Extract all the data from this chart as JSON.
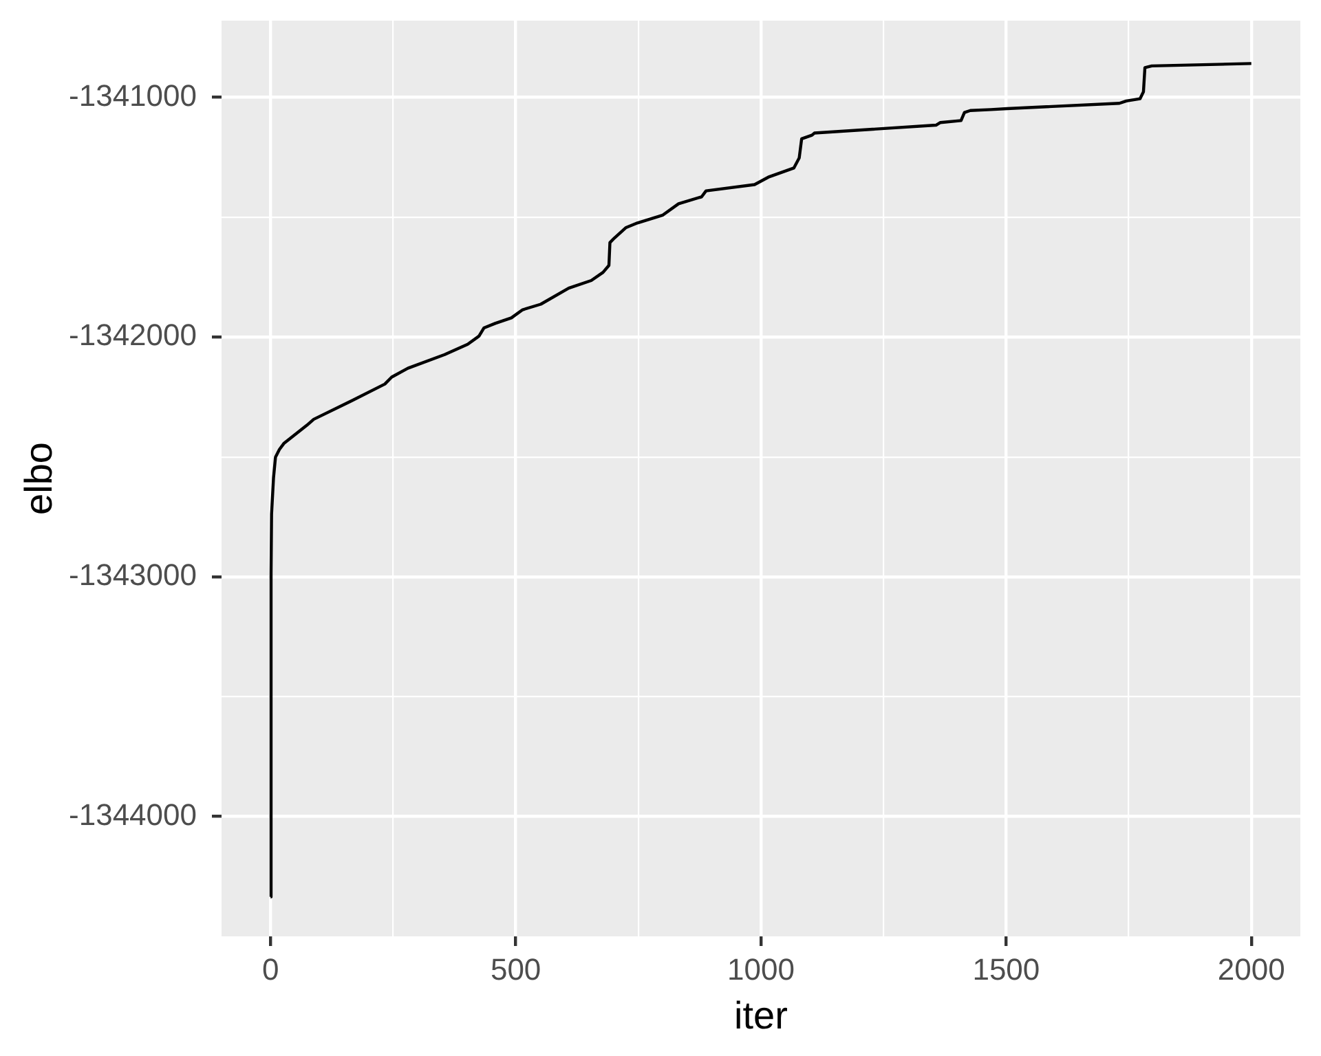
{
  "chart_data": {
    "type": "line",
    "xlabel": "iter",
    "ylabel": "elbo",
    "x": [
      0,
      1,
      2,
      6,
      10,
      18,
      27,
      74,
      88,
      168,
      233,
      247,
      280,
      355,
      402,
      425,
      435,
      458,
      491,
      514,
      551,
      608,
      654,
      678,
      690,
      692,
      701,
      725,
      748,
      800,
      832,
      879,
      888,
      987,
      1015,
      1067,
      1078,
      1083,
      1104,
      1109,
      1357,
      1366,
      1408,
      1415,
      1427,
      1469,
      1502,
      1731,
      1745,
      1773,
      1780,
      1783,
      1797,
      2000
    ],
    "series": [
      {
        "color": "#000000",
        "values": [
          -1344335,
          -1342987,
          -1342739,
          -1342587,
          -1342501,
          -1342469,
          -1342444,
          -1342368,
          -1342343,
          -1342263,
          -1342196,
          -1342167,
          -1342130,
          -1342073,
          -1342030,
          -1341996,
          -1341962,
          -1341943,
          -1341920,
          -1341886,
          -1341863,
          -1341796,
          -1341764,
          -1341730,
          -1341701,
          -1341606,
          -1341587,
          -1341543,
          -1341524,
          -1341491,
          -1341444,
          -1341415,
          -1341390,
          -1341364,
          -1341333,
          -1341295,
          -1341253,
          -1341173,
          -1341158,
          -1341149,
          -1341116,
          -1341105,
          -1341097,
          -1341063,
          -1341055,
          -1341051,
          -1341047,
          -1341025,
          -1341015,
          -1341006,
          -1340977,
          -1340876,
          -1340869,
          -1340859
        ]
      }
    ],
    "xlim": [
      -100,
      2100
    ],
    "ylim": [
      -1344500,
      -1340680
    ],
    "xticks": [
      0,
      {
        "value": 250,
        "label": null
      },
      500,
      {
        "value": 750,
        "label": null
      },
      1000,
      {
        "value": 1250,
        "label": null
      },
      1500,
      {
        "value": 1750,
        "label": null
      },
      2000
    ],
    "yticks": [
      -1344000,
      {
        "value": -1343500,
        "label": null
      },
      -1343000,
      {
        "value": -1342500,
        "label": null
      },
      -1342000,
      {
        "value": -1341500,
        "label": null
      },
      -1341000
    ],
    "grid": true
  }
}
